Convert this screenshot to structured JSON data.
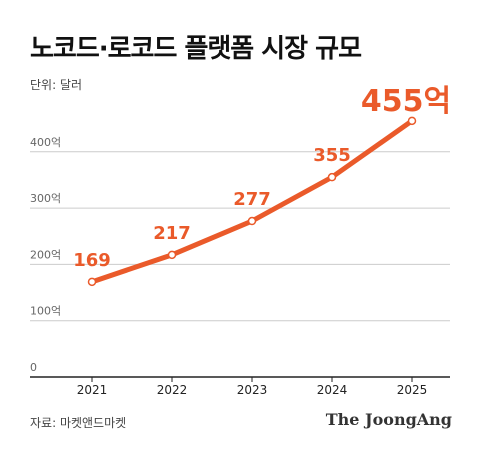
{
  "header": {
    "title": "노코드·로코드 플랫폼 시장 규모",
    "unit_label": "단위: 달러"
  },
  "footer": {
    "source": "자료: 마켓앤드마켓",
    "logo_text": "The JoongAng"
  },
  "colors": {
    "accent": "#ea5a2a",
    "grid": "#cccccc",
    "axis": "#222222",
    "tick_text": "#666666"
  },
  "chart_data": {
    "type": "line",
    "x": [
      "2021",
      "2022",
      "2023",
      "2024",
      "2025"
    ],
    "series": [
      {
        "values": [
          169,
          217,
          277,
          355,
          455
        ],
        "labels": [
          "169",
          "217",
          "277",
          "355",
          "455억"
        ]
      }
    ],
    "yticks": [
      {
        "value": 0,
        "label": "0"
      },
      {
        "value": 100,
        "label": "100억"
      },
      {
        "value": 200,
        "label": "200억"
      },
      {
        "value": 300,
        "label": "300억"
      },
      {
        "value": 400,
        "label": "400억"
      }
    ],
    "ylim": [
      0,
      450
    ],
    "grid": true,
    "highlight_last_label": true
  }
}
